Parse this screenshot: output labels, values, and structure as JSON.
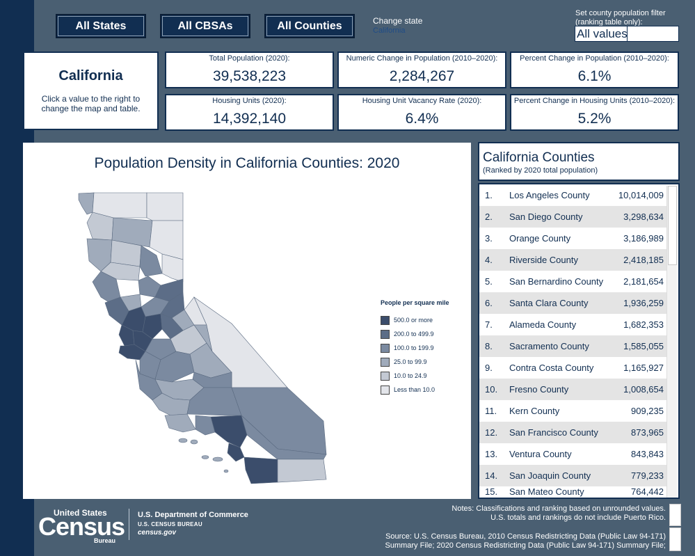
{
  "nav": {
    "all_states": "All States",
    "all_cbsas": "All CBSAs",
    "all_counties": "All Counties",
    "change_state_label": "Change state",
    "change_state_value": "California",
    "filter_label": "Set county population filter (ranking table only):",
    "filter_value": "All values"
  },
  "state_card": {
    "name": "California",
    "hint": "Click a value to the right to change the map and table."
  },
  "stats": [
    {
      "label": "Total Population (2020):",
      "value": "39,538,223"
    },
    {
      "label": "Numeric Change in Population (2010–2020):",
      "value": "2,284,267"
    },
    {
      "label": "Percent Change in Population (2010–2020):",
      "value": "6.1%"
    },
    {
      "label": "Housing Units (2020):",
      "value": "14,392,140"
    },
    {
      "label": "Housing Unit Vacancy Rate (2020):",
      "value": "6.4%"
    },
    {
      "label": "Percent Change in Housing Units (2010–2020):",
      "value": "5.2%"
    }
  ],
  "map": {
    "title": "Population Density in California Counties: 2020",
    "legend_title": "People per square mile",
    "legend": [
      {
        "label": "500.0 or more",
        "color": "#3b4d6b"
      },
      {
        "label": "200.0 to 499.9",
        "color": "#5c6d87"
      },
      {
        "label": "100.0 to 199.9",
        "color": "#7b8aa0"
      },
      {
        "label": "25.0 to 99.9",
        "color": "#a0abbb"
      },
      {
        "label": "10.0 to 24.9",
        "color": "#c3c9d3"
      },
      {
        "label": "Less than 10.0",
        "color": "#e3e5ea"
      }
    ]
  },
  "ranking": {
    "title": "California Counties",
    "subtitle": "(Ranked by 2020 total population)",
    "rows": [
      {
        "rank": "1.",
        "county": "Los Angeles County",
        "pop": "10,014,009"
      },
      {
        "rank": "2.",
        "county": "San Diego County",
        "pop": "3,298,634"
      },
      {
        "rank": "3.",
        "county": "Orange County",
        "pop": "3,186,989"
      },
      {
        "rank": "4.",
        "county": "Riverside County",
        "pop": "2,418,185"
      },
      {
        "rank": "5.",
        "county": "San Bernardino County",
        "pop": "2,181,654"
      },
      {
        "rank": "6.",
        "county": "Santa Clara County",
        "pop": "1,936,259"
      },
      {
        "rank": "7.",
        "county": "Alameda County",
        "pop": "1,682,353"
      },
      {
        "rank": "8.",
        "county": "Sacramento County",
        "pop": "1,585,055"
      },
      {
        "rank": "9.",
        "county": "Contra Costa County",
        "pop": "1,165,927"
      },
      {
        "rank": "10.",
        "county": "Fresno County",
        "pop": "1,008,654"
      },
      {
        "rank": "11.",
        "county": "Kern County",
        "pop": "909,235"
      },
      {
        "rank": "12.",
        "county": "San Francisco County",
        "pop": "873,965"
      },
      {
        "rank": "13.",
        "county": "Ventura County",
        "pop": "843,843"
      },
      {
        "rank": "14.",
        "county": "San Joaquin County",
        "pop": "779,233"
      },
      {
        "rank": "15.",
        "county": "San Mateo County",
        "pop": "764,442"
      }
    ]
  },
  "footer": {
    "logo_top": "United States",
    "logo_main": "Census",
    "logo_bureau": "Bureau",
    "commerce_line1": "U.S. Department of Commerce",
    "commerce_line2": "U.S. CENSUS BUREAU",
    "commerce_line3": "census.gov",
    "notes_line1": "Notes: Classifications and ranking based on unrounded values.",
    "notes_line2": "U.S. totals and rankings do not include Puerto Rico.",
    "source_line1": "Source: U.S. Census Bureau, 2010 Census Redistricting Data (Public Law 94-171)",
    "source_line2": "Summary File; 2020 Census Redistricting Data (Public Law 94-171) Summary File;"
  }
}
